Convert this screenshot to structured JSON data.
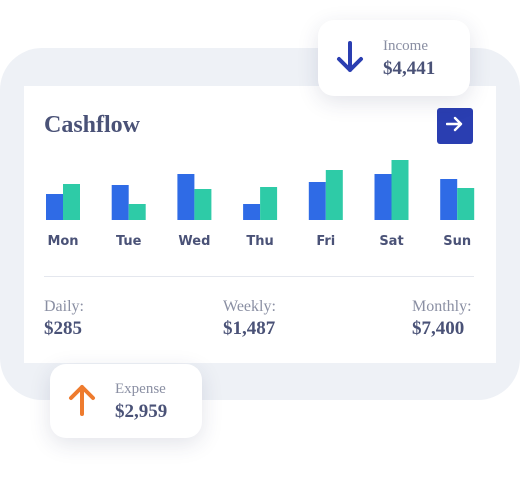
{
  "cashflow": {
    "title": "Cashflow",
    "arrow_icon": "arrow-right-icon"
  },
  "chart_data": {
    "type": "bar",
    "categories": [
      "Mon",
      "Tue",
      "Wed",
      "Thu",
      "Fri",
      "Sat",
      "Sun"
    ],
    "series": [
      {
        "values": [
          26,
          35,
          46,
          16,
          38,
          46,
          41
        ],
        "color": "#2f6be6"
      },
      {
        "values": [
          36,
          16,
          31,
          33,
          50,
          60,
          32
        ],
        "color": "#2ecba7"
      }
    ],
    "ylim": [
      0,
      60
    ],
    "grid": false,
    "legend": "none"
  },
  "stats": {
    "daily": {
      "label": "Daily:",
      "value": "$285"
    },
    "weekly": {
      "label": "Weekly:",
      "value": "$1,487"
    },
    "monthly": {
      "label": "Monthly:",
      "value": "$7,400"
    }
  },
  "income": {
    "label": "Income",
    "value": "$4,441",
    "icon": "arrow-down-icon",
    "icon_color": "#2a3eb1"
  },
  "expense": {
    "label": "Expense",
    "value": "$2,959",
    "icon": "arrow-up-icon",
    "icon_color": "#ee7b2e"
  }
}
